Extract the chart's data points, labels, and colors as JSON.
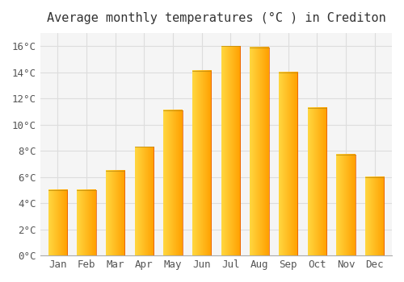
{
  "title": "Average monthly temperatures (°C ) in Crediton",
  "months": [
    "Jan",
    "Feb",
    "Mar",
    "Apr",
    "May",
    "Jun",
    "Jul",
    "Aug",
    "Sep",
    "Oct",
    "Nov",
    "Dec"
  ],
  "values": [
    5.0,
    5.0,
    6.5,
    8.3,
    11.1,
    14.1,
    16.0,
    15.9,
    14.0,
    11.3,
    7.7,
    6.0
  ],
  "bar_color_left": "#FFD740",
  "bar_color_right": "#FFA000",
  "background_color": "#FFFFFF",
  "plot_bg_color": "#F5F5F5",
  "grid_color": "#DDDDDD",
  "ytick_labels": [
    "0°C",
    "2°C",
    "4°C",
    "6°C",
    "8°C",
    "10°C",
    "12°C",
    "14°C",
    "16°C"
  ],
  "ytick_values": [
    0,
    2,
    4,
    6,
    8,
    10,
    12,
    14,
    16
  ],
  "ylim": [
    0,
    17
  ],
  "title_fontsize": 11,
  "tick_fontsize": 9
}
